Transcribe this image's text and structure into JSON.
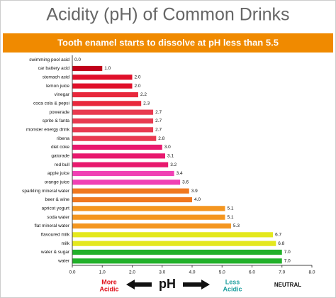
{
  "chart_data": {
    "type": "hbar",
    "title": "Acidity (pH) of Common Drinks",
    "subtitle": "Tooth enamel starts to dissolve at pH less than 5.5",
    "categories": [
      "swimming pool acid",
      "car battery acid",
      "stomach acid",
      "lemon juice",
      "vinegar",
      "coca cola & pepsi",
      "powerade",
      "sprite & fanta",
      "monster energy drink",
      "ribena",
      "diet coke",
      "gatorade",
      "red bull",
      "apple juice",
      "orange juice",
      "sparkling mineral water",
      "beer & wine",
      "apricot yogurt",
      "soda water",
      "flat mineral water",
      "flavoured milk",
      "milk",
      "water & sugar",
      "water"
    ],
    "values": [
      0.0,
      1.0,
      2.0,
      2.0,
      2.2,
      2.3,
      2.7,
      2.7,
      2.7,
      2.8,
      3.0,
      3.1,
      3.2,
      3.4,
      3.6,
      3.9,
      4.0,
      5.1,
      5.1,
      5.3,
      6.7,
      6.8,
      7.0,
      7.0
    ],
    "value_labels": [
      "0.0",
      "1.0",
      "2.0",
      "2.0",
      "2.2",
      "2.3",
      "2.7",
      "2.7",
      "2.7",
      "2.8",
      "3.0",
      "3.1",
      "3.2",
      "3.4",
      "3.6",
      "3.9",
      "4.0",
      "5.1",
      "5.1",
      "5.3",
      "6.7",
      "6.8",
      "7.0",
      "7.0"
    ],
    "colors": [
      "#c0001a",
      "#c0001a",
      "#e0102a",
      "#e0102a",
      "#e8283c",
      "#e8283c",
      "#e83a50",
      "#e83a50",
      "#e83a50",
      "#e83a50",
      "#e8196e",
      "#e8196e",
      "#e8196e",
      "#f040b4",
      "#f040b4",
      "#f07820",
      "#f07820",
      "#f49620",
      "#f49620",
      "#f49620",
      "#e4e81e",
      "#e4e81e",
      "#22b02a",
      "#22b02a"
    ],
    "xlim": [
      0,
      8
    ],
    "xticks": [
      {
        "value": 0,
        "label": "0.0"
      },
      {
        "value": 1,
        "label": "1.0"
      },
      {
        "value": 2,
        "label": "2.0"
      },
      {
        "value": 3,
        "label": "3.0"
      },
      {
        "value": 4,
        "label": "4.0"
      },
      {
        "value": 5,
        "label": "5.0"
      },
      {
        "value": 6,
        "label": "6.0"
      },
      {
        "value": 7,
        "label": "7.0"
      },
      {
        "value": 8,
        "label": "8.0"
      }
    ],
    "annotations": {
      "more_acidic": [
        "More",
        "Acidic"
      ],
      "ph": "pH",
      "less_acidic": [
        "Less",
        "Acidic"
      ],
      "neutral": "NEUTRAL"
    }
  }
}
